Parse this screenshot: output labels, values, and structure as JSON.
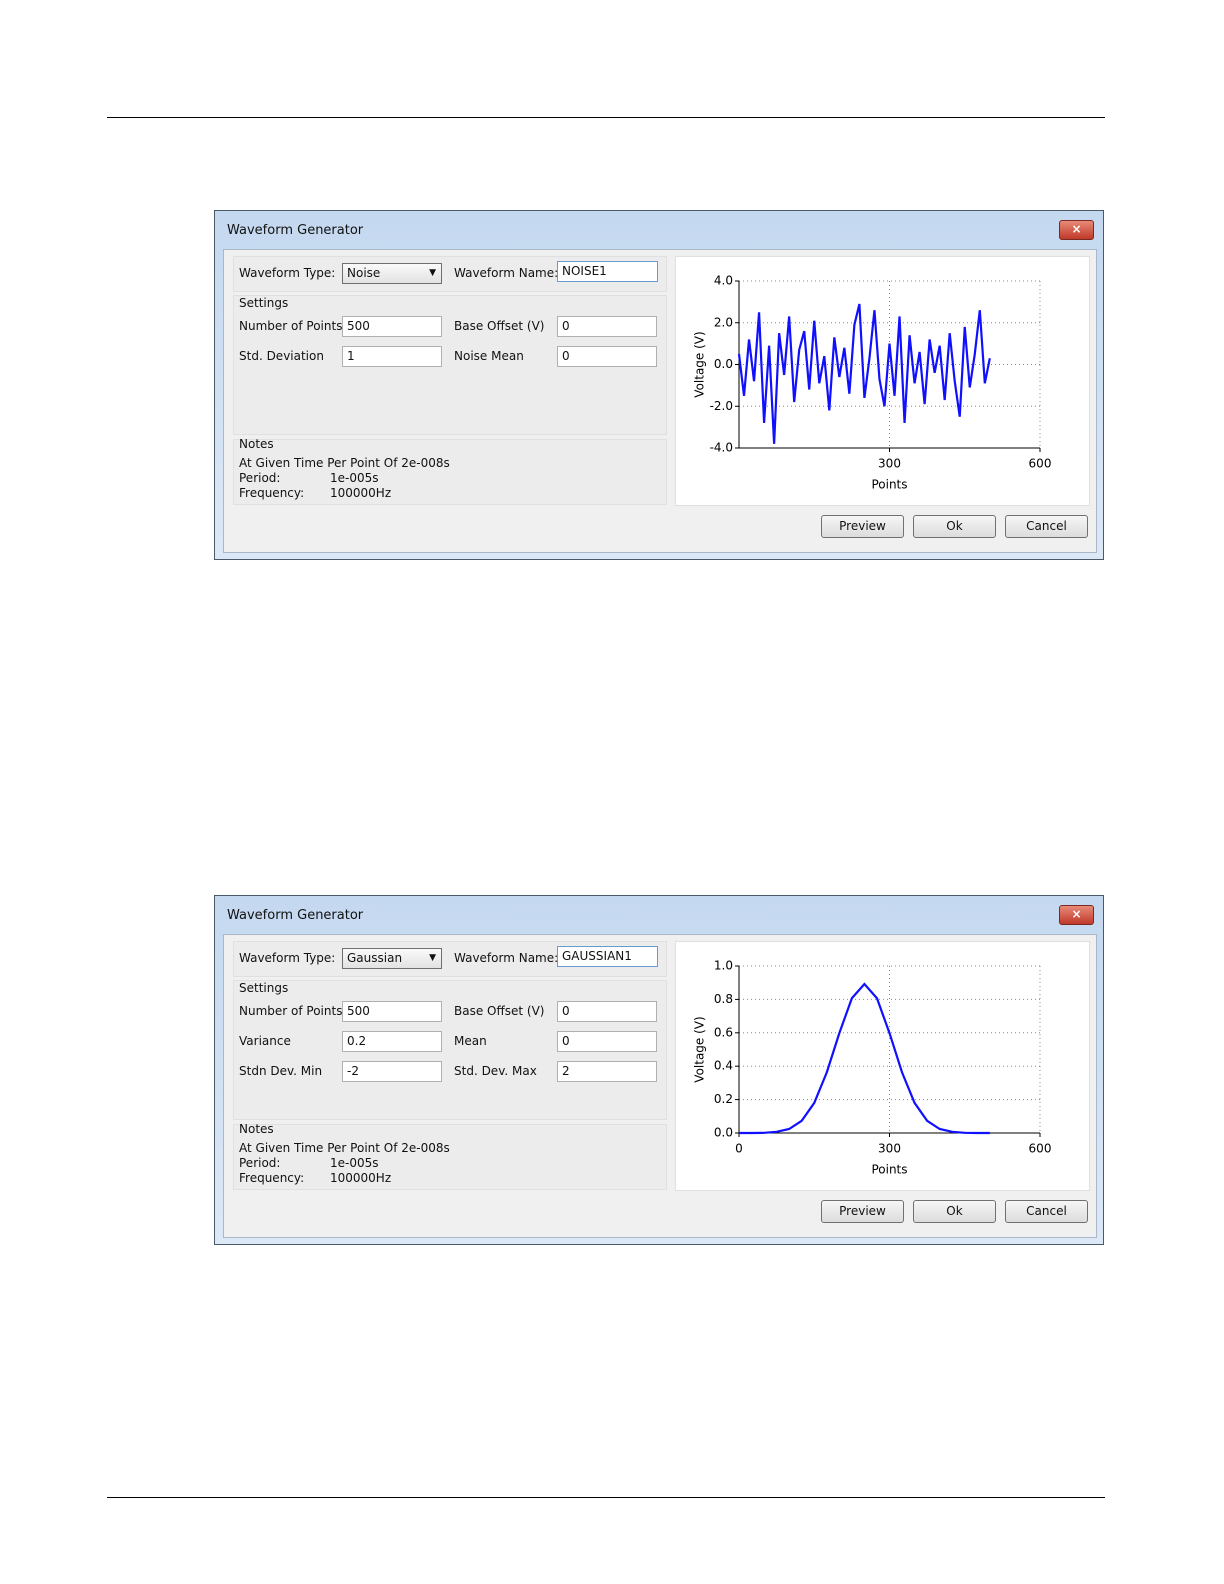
{
  "dialogs": [
    {
      "title": "Waveform Generator",
      "waveform_type_label": "Waveform Type:",
      "waveform_type": "Noise",
      "waveform_name_label": "Waveform Name:",
      "waveform_name": "NOISE1",
      "settings_label": "Settings",
      "fields": [
        {
          "label": "Number of Points",
          "value": "500"
        },
        {
          "label": "Base Offset (V)",
          "value": "0"
        },
        {
          "label": "Std. Deviation",
          "value": "1"
        },
        {
          "label": "Noise Mean",
          "value": "0"
        }
      ],
      "notes_label": "Notes",
      "notes_line": "At Given Time Per Point Of 2e-008s",
      "notes_rows": [
        {
          "label": "Period:",
          "value": "1e-005s"
        },
        {
          "label": "Frequency:",
          "value": "100000Hz"
        }
      ],
      "buttons": [
        "Preview",
        "Ok",
        "Cancel"
      ],
      "chart": {
        "type": "line",
        "y_label": "Voltage (V)",
        "x_label": "Points",
        "color": "#1010ff",
        "x": [
          0,
          10,
          20,
          30,
          40,
          50,
          60,
          70,
          80,
          90,
          100,
          110,
          120,
          130,
          140,
          150,
          160,
          170,
          180,
          190,
          200,
          210,
          220,
          230,
          240,
          250,
          260,
          270,
          280,
          290,
          300,
          310,
          320,
          330,
          340,
          350,
          360,
          370,
          380,
          390,
          400,
          410,
          420,
          430,
          440,
          450,
          460,
          470,
          480,
          490,
          500
        ],
        "values": [
          0.5,
          -1.5,
          1.2,
          -0.8,
          2.5,
          -2.8,
          0.9,
          -3.8,
          1.5,
          -0.5,
          2.3,
          -1.8,
          0.7,
          1.6,
          -1.2,
          2.1,
          -0.9,
          0.4,
          -2.2,
          1.3,
          -0.6,
          0.8,
          -1.4,
          1.9,
          2.9,
          -1.6,
          0.3,
          2.6,
          -0.7,
          -2.0,
          1.0,
          -1.5,
          2.3,
          -2.8,
          1.4,
          -0.9,
          0.6,
          -1.9,
          1.2,
          -0.4,
          0.9,
          -1.7,
          1.5,
          -0.8,
          -2.5,
          1.8,
          -1.1,
          0.5,
          2.6,
          -0.9,
          0.3
        ],
        "xlim": [
          0,
          600
        ],
        "ylim": [
          -4,
          4
        ],
        "xticks": [
          300,
          600
        ],
        "yticks": [
          {
            "value": -4,
            "label": "-4.0"
          },
          {
            "value": -2,
            "label": "-2.0"
          },
          {
            "value": 0,
            "label": "0.0"
          },
          {
            "value": 2,
            "label": "2.0"
          },
          {
            "value": 4,
            "label": "4.0"
          }
        ],
        "grid": true
      }
    },
    {
      "title": "Waveform Generator",
      "waveform_type_label": "Waveform Type:",
      "waveform_type": "Gaussian",
      "waveform_name_label": "Waveform Name:",
      "waveform_name": "GAUSSIAN1",
      "settings_label": "Settings",
      "fields": [
        {
          "label": "Number of Points",
          "value": "500"
        },
        {
          "label": "Base Offset (V)",
          "value": "0"
        },
        {
          "label": "Variance",
          "value": "0.2"
        },
        {
          "label": "Mean",
          "value": "0"
        },
        {
          "label": "Stdn Dev. Min",
          "value": "-2"
        },
        {
          "label": "Std. Dev. Max",
          "value": "2"
        }
      ],
      "notes_label": "Notes",
      "notes_line": "At Given Time Per Point Of 2e-008s",
      "notes_rows": [
        {
          "label": "Period:",
          "value": "1e-005s"
        },
        {
          "label": "Frequency:",
          "value": "100000Hz"
        }
      ],
      "buttons": [
        "Preview",
        "Ok",
        "Cancel"
      ],
      "chart": {
        "type": "line",
        "y_label": "Voltage (V)",
        "x_label": "Points",
        "color": "#1010ff",
        "x": [
          0,
          25,
          50,
          75,
          100,
          125,
          150,
          175,
          200,
          225,
          250,
          275,
          300,
          325,
          350,
          375,
          400,
          425,
          450,
          475,
          500
        ],
        "values": [
          0,
          0,
          0.001,
          0.007,
          0.024,
          0.073,
          0.18,
          0.363,
          0.598,
          0.807,
          0.892,
          0.807,
          0.598,
          0.363,
          0.18,
          0.073,
          0.024,
          0.007,
          0.001,
          0,
          0
        ],
        "xlim": [
          0,
          600
        ],
        "ylim": [
          0,
          1
        ],
        "xticks": [
          0,
          300,
          600
        ],
        "yticks": [
          {
            "value": 0,
            "label": "0.0"
          },
          0.2,
          0.4,
          0.6,
          0.8,
          {
            "value": 1,
            "label": "1.0"
          }
        ],
        "grid": true
      }
    }
  ]
}
